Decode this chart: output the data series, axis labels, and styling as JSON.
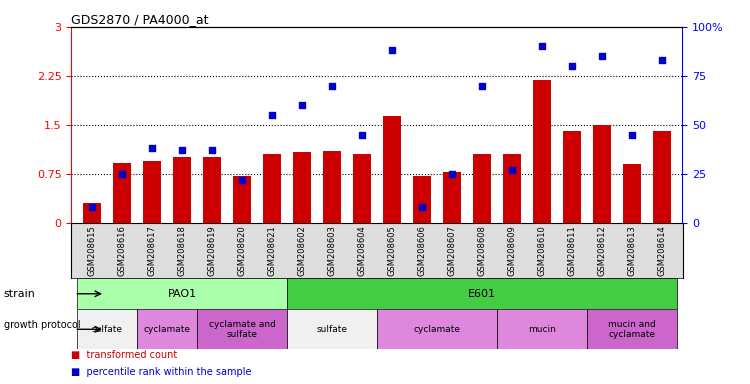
{
  "title": "GDS2870 / PA4000_at",
  "samples": [
    "GSM208615",
    "GSM208616",
    "GSM208617",
    "GSM208618",
    "GSM208619",
    "GSM208620",
    "GSM208621",
    "GSM208602",
    "GSM208603",
    "GSM208604",
    "GSM208605",
    "GSM208606",
    "GSM208607",
    "GSM208608",
    "GSM208609",
    "GSM208610",
    "GSM208611",
    "GSM208612",
    "GSM208613",
    "GSM208614"
  ],
  "transformed_count": [
    0.3,
    0.92,
    0.95,
    1.0,
    1.0,
    0.72,
    1.05,
    1.08,
    1.1,
    1.05,
    1.63,
    0.72,
    0.78,
    1.05,
    1.05,
    2.18,
    1.4,
    1.5,
    0.9,
    1.4
  ],
  "percentile_rank": [
    8,
    25,
    38,
    37,
    37,
    22,
    55,
    60,
    70,
    45,
    88,
    8,
    25,
    70,
    27,
    90,
    80,
    85,
    45,
    83
  ],
  "ylim_left": [
    0,
    3
  ],
  "ylim_right": [
    0,
    100
  ],
  "yticks_left": [
    0,
    0.75,
    1.5,
    2.25,
    3
  ],
  "yticks_right": [
    0,
    25,
    50,
    75,
    100
  ],
  "bar_color": "#cc0000",
  "scatter_color": "#0000cc",
  "hline_values": [
    0.75,
    1.5,
    2.25
  ],
  "strain_labels": [
    {
      "text": "PAO1",
      "start": 0,
      "end": 6,
      "color": "#aaffaa"
    },
    {
      "text": "E601",
      "start": 7,
      "end": 19,
      "color": "#44cc44"
    }
  ],
  "growth_labels": [
    {
      "text": "sulfate",
      "start": 0,
      "end": 1,
      "color": "#f0f0f0"
    },
    {
      "text": "cyclamate",
      "start": 2,
      "end": 3,
      "color": "#dd88dd"
    },
    {
      "text": "cyclamate and\nsulfate",
      "start": 4,
      "end": 6,
      "color": "#cc66cc"
    },
    {
      "text": "sulfate",
      "start": 7,
      "end": 9,
      "color": "#f0f0f0"
    },
    {
      "text": "cyclamate",
      "start": 10,
      "end": 13,
      "color": "#dd88dd"
    },
    {
      "text": "mucin",
      "start": 14,
      "end": 16,
      "color": "#dd88dd"
    },
    {
      "text": "mucin and\ncyclamate",
      "start": 17,
      "end": 19,
      "color": "#cc66cc"
    }
  ],
  "xticklabel_bg": "#dddddd",
  "legend_items": [
    {
      "label": "transformed count",
      "color": "#cc0000"
    },
    {
      "label": "percentile rank within the sample",
      "color": "#0000cc"
    }
  ],
  "fig_width": 7.5,
  "fig_height": 3.84,
  "dpi": 100
}
